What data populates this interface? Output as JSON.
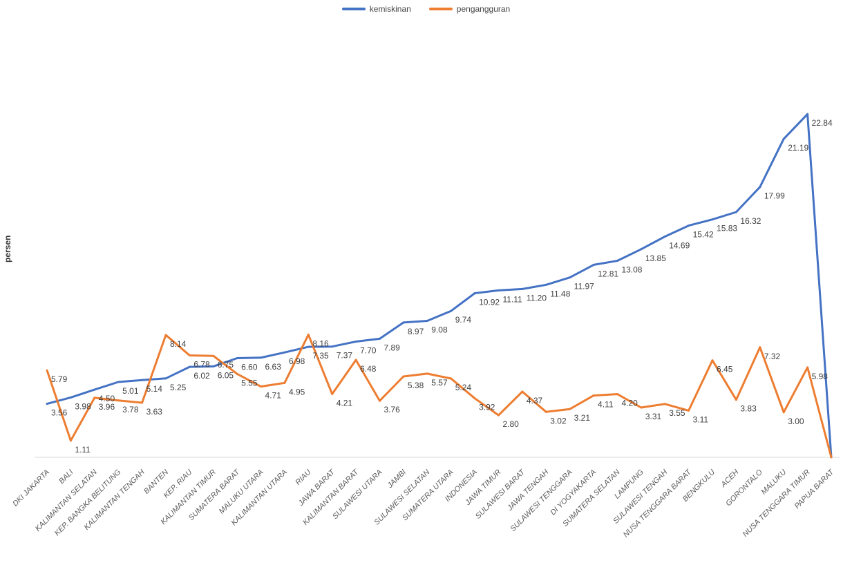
{
  "chart_data": {
    "type": "line",
    "title": "",
    "xlabel": "",
    "ylabel": "persen",
    "categories": [
      "DKI JAKARTA",
      "BALI",
      "KALIMANTAN SELATAN",
      "KEP. BANGKA BELITUNG",
      "KALIMANTAN TENGAH",
      "BANTEN",
      "KEP. RIAU",
      "KALIMANTAN TIMUR",
      "SUMATERA BARAT",
      "MALUKU UTARA",
      "KALIMANTAN UTARA",
      "RIAU",
      "JAWA BARAT",
      "KALIMANTAN BARAT",
      "SULAWESI UTARA",
      "JAMBI",
      "SULAWESI SELATAN",
      "SUMATERA UTARA",
      "INDONESIA",
      "JAWA TIMUR",
      "SULAWESI BARAT",
      "JAWA TENGAH",
      "SULAWESI TENGGARA",
      "DI YOGYAKARTA",
      "SUMATERA SELATAN",
      "LAMPUNG",
      "SULAWESI TENGAH",
      "NUSA TENGGARA BARAT",
      "BENGKULU",
      "ACEH",
      "GORONTALO",
      "MALUKU",
      "NUSA TENGGARA TIMUR",
      "PAPUA BARAT"
    ],
    "series": [
      {
        "name": "kemiskinan",
        "color": "#4472C4",
        "values": [
          3.56,
          3.98,
          4.5,
          5.01,
          5.14,
          5.25,
          6.02,
          6.05,
          6.6,
          6.63,
          6.98,
          7.35,
          7.37,
          7.7,
          7.89,
          8.97,
          9.08,
          9.74,
          10.92,
          11.11,
          11.2,
          11.48,
          11.97,
          12.81,
          13.08,
          13.85,
          14.69,
          15.42,
          15.83,
          16.32,
          17.99,
          21.19,
          22.84,
          0
        ],
        "labels": [
          "3.56",
          "3.98",
          "4.50",
          "5.01",
          "5.14",
          "5.25",
          "6.02",
          "6.05",
          "6.60",
          "6.63",
          "6.98",
          "7.35",
          "7.37",
          "7.70",
          "7.89",
          "8.97",
          "9.08",
          "9.74",
          "10.92",
          "11.11",
          "11.20",
          "11.48",
          "11.97",
          "12.81",
          "13.08",
          "13.85",
          "14.69",
          "15.42",
          "15.83",
          "16.32",
          "17.99",
          "21.19",
          "22.84",
          ""
        ]
      },
      {
        "name": "pengangguran",
        "color": "#ED7D31",
        "values": [
          5.79,
          1.11,
          3.96,
          3.78,
          3.63,
          8.14,
          6.78,
          6.75,
          5.55,
          4.71,
          4.95,
          8.16,
          4.21,
          6.48,
          3.76,
          5.38,
          5.57,
          5.24,
          3.92,
          2.8,
          4.37,
          3.02,
          3.21,
          4.11,
          4.2,
          3.31,
          3.55,
          3.11,
          6.45,
          3.83,
          7.32,
          3.0,
          5.98,
          0
        ],
        "labels": [
          "5.79",
          "1.11",
          "3.96",
          "3.78",
          "3.63",
          "8.14",
          "6.78",
          "6.75",
          "5.55",
          "4.71",
          "4.95",
          "8.16",
          "4.21",
          "6.48",
          "3.76",
          "5.38",
          "5.57",
          "5.24",
          "3.92",
          "2.80",
          "4.37",
          "3.02",
          "3.21",
          "4.11",
          "4.20",
          "3.31",
          "3.55",
          "3.11",
          "6.45",
          "3.83",
          "7.32",
          "3.00",
          "5.98",
          ""
        ]
      }
    ],
    "ylim": [
      0,
      24
    ],
    "grid": false,
    "legend_position": "top-center"
  }
}
